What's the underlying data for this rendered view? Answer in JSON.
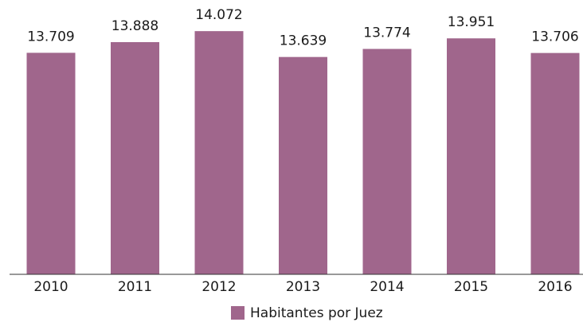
{
  "chart_data": {
    "type": "bar",
    "categories": [
      "2010",
      "2011",
      "2012",
      "2013",
      "2014",
      "2015",
      "2016"
    ],
    "series": [
      {
        "name": "Habitantes por Juez",
        "color": "#a0668c",
        "values": [
          13709,
          13888,
          14072,
          13639,
          13774,
          13951,
          13706
        ],
        "value_labels": [
          "13.709",
          "13.888",
          "14.072",
          "13.639",
          "13.774",
          "13.951",
          "13.706"
        ]
      }
    ],
    "ylim": [
      10000,
      14500
    ],
    "legend": "bottom"
  }
}
